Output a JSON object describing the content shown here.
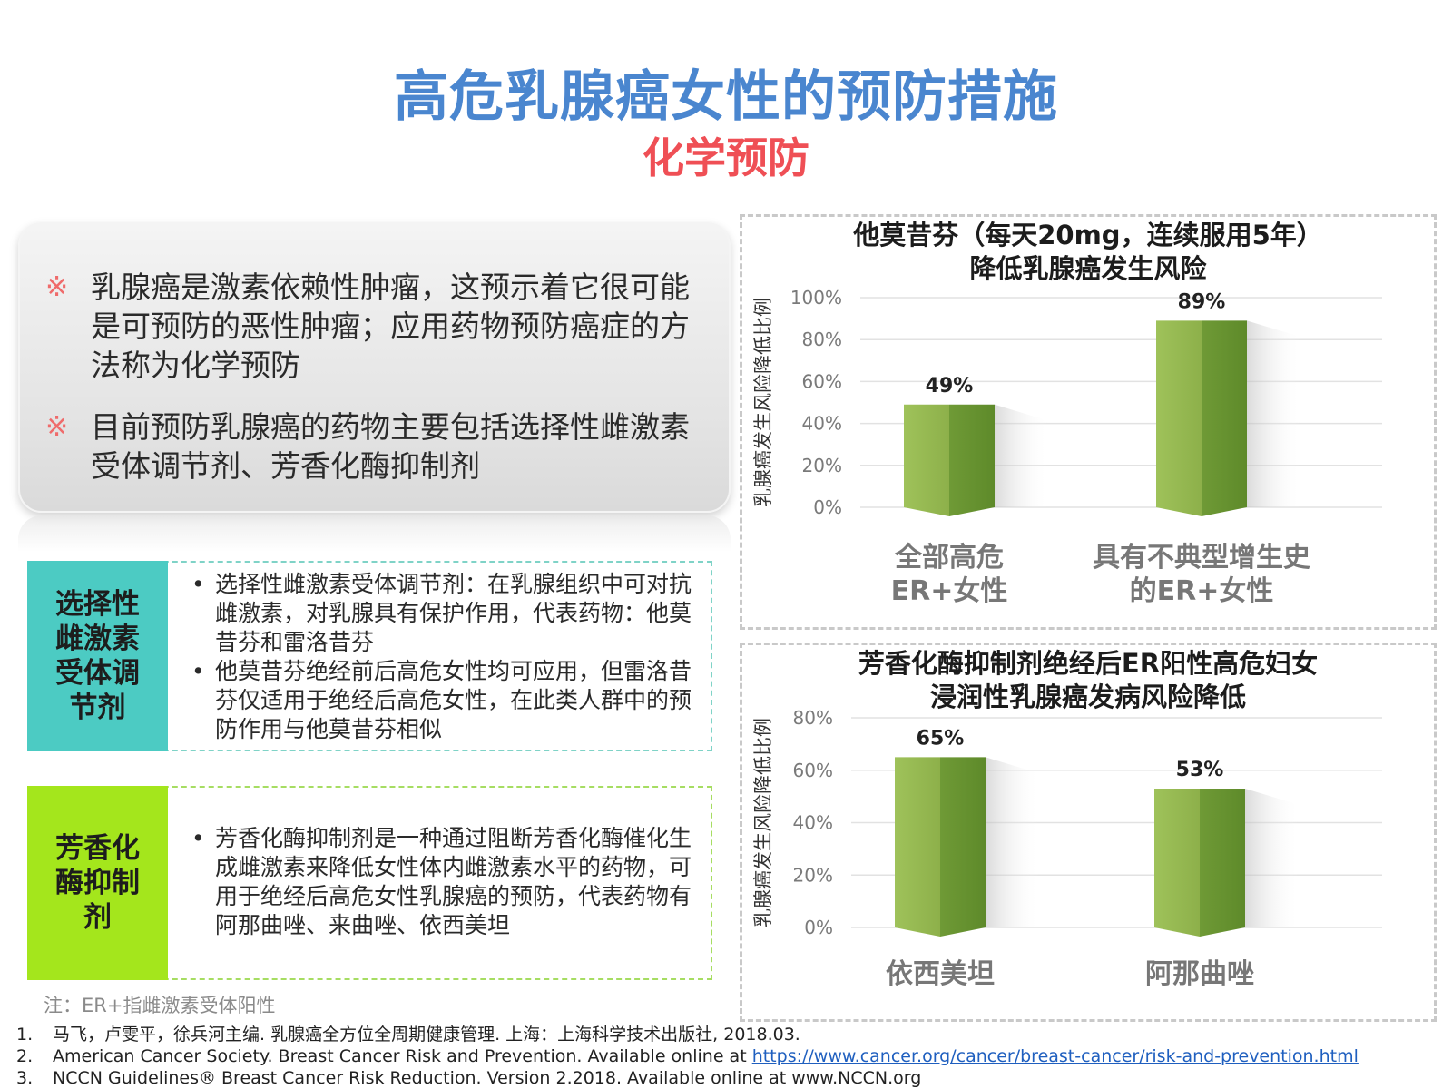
{
  "header": {
    "title": "高危乳腺癌女性的预防措施",
    "subtitle": "化学预防"
  },
  "intro": {
    "bullets": [
      {
        "mark": "※",
        "text": "乳腺癌是激素依赖性肿瘤，这预示着它很可能是可预防的恶性肿瘤；应用药物预防癌症的方法称为化学预防"
      },
      {
        "mark": "※",
        "text": "目前预防乳腺癌的药物主要包括选择性雌激素受体调节剂、芳香化酶抑制剂"
      }
    ]
  },
  "drug_classes": [
    {
      "label": "选择性雌激素受体调节剂",
      "color": "#4ccbc3",
      "items": [
        "选择性雌激素受体调节剂：在乳腺组织中可对抗雌激素，对乳腺具有保护作用，代表药物：他莫昔芬和雷洛昔芬",
        "他莫昔芬绝经前后高危女性均可应用，但雷洛昔芬仅适用于绝经后高危女性，在此类人群中的预防作用与他莫昔芬相似"
      ]
    },
    {
      "label": "芳香化酶抑制剂",
      "color": "#a4e61c",
      "items": [
        "芳香化酶抑制剂是一种通过阻断芳香化酶催化生成雌激素来降低女性体内雌激素水平的药物，可用于绝经后高危女性乳腺癌的预防，代表药物有阿那曲唑、来曲唑、依西美坦"
      ]
    }
  ],
  "note": "注：ER+指雌激素受体阳性",
  "references": [
    {
      "num": "1.",
      "text": "马飞，卢雯平，徐兵河主编. 乳腺癌全方位全周期健康管理. 上海：上海科学技术出版社, 2018.03.",
      "link": ""
    },
    {
      "num": "2.",
      "text": "American Cancer Society. Breast Cancer Risk and Prevention. Available online at ",
      "link": "https://www.cancer.org/cancer/breast-cancer/risk-and-prevention.html"
    },
    {
      "num": "3.",
      "text": "NCCN Guidelines® Breast Cancer Risk Reduction. Version 2.2018. Available online at www.NCCN.org",
      "link": ""
    }
  ],
  "chart_data": [
    {
      "type": "bar",
      "title": "他莫昔芬（每天20mg，连续服用5年）降低乳腺癌发生风险",
      "title_lines": [
        "他莫昔芬（每天20mg，连续服用5年）",
        "降低乳腺癌发生风险"
      ],
      "ylabel": "乳腺癌发生风险降低比例",
      "categories": [
        "全部高危ER+女性",
        "具有不典型增生史的ER+女性"
      ],
      "category_lines": [
        [
          "全部高危",
          "ER+女性"
        ],
        [
          "具有不典型增生史",
          "的ER+女性"
        ]
      ],
      "values": [
        49,
        89
      ],
      "data_labels": [
        "49%",
        "89%"
      ],
      "yticks": [
        "0%",
        "20%",
        "40%",
        "60%",
        "80%",
        "100%"
      ],
      "ylim": [
        0,
        100
      ],
      "bar_color": "#8db04a",
      "grid": true
    },
    {
      "type": "bar",
      "title": "芳香化酶抑制剂绝经后ER阳性高危妇女浸润性乳腺癌发病风险降低",
      "title_lines": [
        "芳香化酶抑制剂绝经后ER阳性高危妇女",
        "浸润性乳腺癌发病风险降低"
      ],
      "ylabel": "乳腺癌发生风险降低比例",
      "categories": [
        "依西美坦",
        "阿那曲唑"
      ],
      "category_lines": [
        [
          "依西美坦"
        ],
        [
          "阿那曲唑"
        ]
      ],
      "values": [
        65,
        53
      ],
      "data_labels": [
        "65%",
        "53%"
      ],
      "yticks": [
        "0%",
        "20%",
        "40%",
        "60%",
        "80%"
      ],
      "ylim": [
        0,
        80
      ],
      "bar_color": "#8db04a",
      "grid": true
    }
  ]
}
